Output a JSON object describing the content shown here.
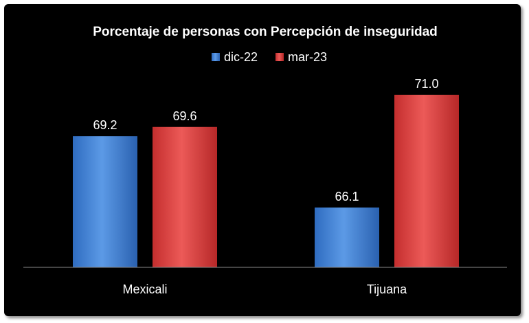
{
  "chart_data": {
    "type": "bar",
    "title": "Porcentaje de personas con Percepción de inseguridad",
    "xlabel": "",
    "ylabel": "",
    "categories": [
      "Mexicali",
      "Tijuana"
    ],
    "series": [
      {
        "name": "dic-22",
        "values": [
          69.2,
          66.1
        ],
        "color": "#3f7fd0"
      },
      {
        "name": "mar-23",
        "values": [
          69.6,
          71.0
        ],
        "color": "#d83a3a"
      }
    ],
    "value_labels": [
      [
        "69.2",
        "66.1"
      ],
      [
        "69.6",
        "71.0"
      ]
    ],
    "ylim": [
      63.5,
      72.4
    ],
    "grid": false,
    "legend_position": "top-center"
  }
}
